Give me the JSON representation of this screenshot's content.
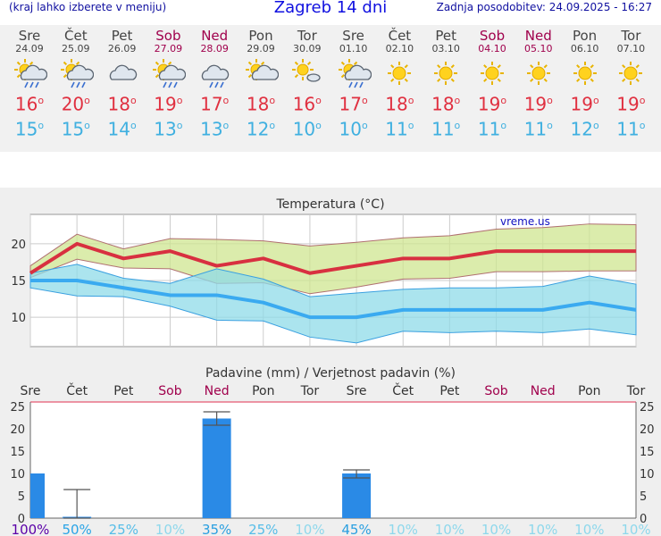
{
  "header": {
    "note": "(kraj lahko izberete v meniju)",
    "title": "Zagreb 14 dni",
    "updated": "Zadnja posodobitev: 24.09.2025 - 16:27"
  },
  "colors": {
    "max_temp": "#e03040",
    "min_temp": "#40b0e0",
    "weekend": "#a0004c",
    "max_band": "#cfe690",
    "min_band": "#8fdbe8",
    "precip_bar": "#2a8ae6"
  },
  "days": [
    {
      "name": "Sre",
      "date": "24.09",
      "weekend": false,
      "icon": "sun-cloud-rain-icon",
      "max": "16",
      "min": "15"
    },
    {
      "name": "Čet",
      "date": "25.09",
      "weekend": false,
      "icon": "sun-cloud-rain-icon",
      "max": "20",
      "min": "15"
    },
    {
      "name": "Pet",
      "date": "26.09",
      "weekend": false,
      "icon": "cloud-icon",
      "max": "18",
      "min": "14"
    },
    {
      "name": "Sob",
      "date": "27.09",
      "weekend": true,
      "icon": "sun-cloud-rain-icon",
      "max": "19",
      "min": "13"
    },
    {
      "name": "Ned",
      "date": "28.09",
      "weekend": true,
      "icon": "cloud-rain-icon",
      "max": "17",
      "min": "13"
    },
    {
      "name": "Pon",
      "date": "29.09",
      "weekend": false,
      "icon": "sun-cloud-icon",
      "max": "18",
      "min": "12"
    },
    {
      "name": "Tor",
      "date": "30.09",
      "weekend": false,
      "icon": "sun-small-cloud-icon",
      "max": "16",
      "min": "10"
    },
    {
      "name": "Sre",
      "date": "01.10",
      "weekend": false,
      "icon": "sun-cloud-rain-icon",
      "max": "17",
      "min": "10"
    },
    {
      "name": "Čet",
      "date": "02.10",
      "weekend": false,
      "icon": "sun-icon",
      "max": "18",
      "min": "11"
    },
    {
      "name": "Pet",
      "date": "03.10",
      "weekend": false,
      "icon": "sun-icon",
      "max": "18",
      "min": "11"
    },
    {
      "name": "Sob",
      "date": "04.10",
      "weekend": true,
      "icon": "sun-icon",
      "max": "19",
      "min": "11"
    },
    {
      "name": "Ned",
      "date": "05.10",
      "weekend": true,
      "icon": "sun-icon",
      "max": "19",
      "min": "11"
    },
    {
      "name": "Pon",
      "date": "06.10",
      "weekend": false,
      "icon": "sun-icon",
      "max": "19",
      "min": "12"
    },
    {
      "name": "Tor",
      "date": "07.10",
      "weekend": false,
      "icon": "sun-icon",
      "max": "19",
      "min": "11"
    }
  ],
  "chart_data": [
    {
      "type": "line",
      "title": "Temperatura (°C)",
      "watermark": "vreme.us",
      "ylim": [
        6,
        24
      ],
      "yticks": [
        10,
        15,
        20
      ],
      "grid": true,
      "x": [
        "24.09",
        "25.09",
        "26.09",
        "27.09",
        "28.09",
        "29.09",
        "30.09",
        "01.10",
        "02.10",
        "03.10",
        "04.10",
        "05.10",
        "06.10",
        "07.10"
      ],
      "series": [
        {
          "role": "max",
          "values": [
            16,
            20,
            18,
            19,
            17,
            18,
            16,
            17,
            18,
            18,
            19,
            19,
            19,
            19
          ]
        },
        {
          "role": "max_upper",
          "values": [
            17,
            21.3,
            19.3,
            20.7,
            20.6,
            20.4,
            19.7,
            20.2,
            20.8,
            21.1,
            22,
            22.2,
            22.7,
            22.6
          ]
        },
        {
          "role": "max_lower",
          "values": [
            15.4,
            17.9,
            16.7,
            16.6,
            14.6,
            14.7,
            13.2,
            14.1,
            15.2,
            15.3,
            16.2,
            16.2,
            16.3,
            16.3
          ]
        },
        {
          "role": "min",
          "values": [
            15,
            15,
            14,
            13,
            13,
            12,
            10,
            10,
            11,
            11,
            11,
            11,
            12,
            11
          ]
        },
        {
          "role": "min_upper",
          "values": [
            16,
            17.2,
            15.3,
            14.6,
            16.6,
            15.2,
            12.8,
            13.3,
            13.8,
            14,
            14,
            14.2,
            15.6,
            14.5
          ]
        },
        {
          "role": "min_lower",
          "values": [
            14,
            12.9,
            12.8,
            11.5,
            9.6,
            9.5,
            7.3,
            6.5,
            8.1,
            7.9,
            8.1,
            7.9,
            8.4,
            7.6
          ]
        }
      ]
    },
    {
      "type": "bar",
      "title": "Padavine (mm) / Verjetnost padavin (%)",
      "categories": [
        "Sre",
        "Čet",
        "Pet",
        "Sob",
        "Ned",
        "Pon",
        "Tor",
        "Sre",
        "Čet",
        "Pet",
        "Sob",
        "Ned",
        "Pon",
        "Tor"
      ],
      "weekend": [
        false,
        false,
        false,
        true,
        true,
        false,
        false,
        false,
        false,
        false,
        true,
        true,
        false,
        false
      ],
      "ylim": [
        0,
        26
      ],
      "yticks": [
        0,
        5,
        10,
        15,
        20,
        25
      ],
      "values": [
        10,
        0.3,
        0,
        0,
        22.3,
        0,
        0,
        10,
        0,
        0,
        0,
        0,
        0,
        0
      ],
      "range_low": [
        null,
        0,
        null,
        null,
        20.8,
        null,
        null,
        9,
        null,
        null,
        null,
        null,
        null,
        null
      ],
      "range_high": [
        null,
        6.4,
        null,
        null,
        23.8,
        null,
        null,
        10.8,
        null,
        null,
        null,
        null,
        null,
        null
      ],
      "probability": [
        "100%",
        "50%",
        "25%",
        "10%",
        "35%",
        "25%",
        "10%",
        "45%",
        "10%",
        "10%",
        "10%",
        "10%",
        "10%",
        "10%"
      ],
      "probability_color": [
        "#5a00a8",
        "#2aa4e6",
        "#55bde8",
        "#8ed8ec",
        "#2a9fe0",
        "#55bde8",
        "#8ed8ec",
        "#2a9fe0",
        "#8ed8ec",
        "#8ed8ec",
        "#8ed8ec",
        "#8ed8ec",
        "#8ed8ec",
        "#8ed8ec"
      ]
    }
  ]
}
